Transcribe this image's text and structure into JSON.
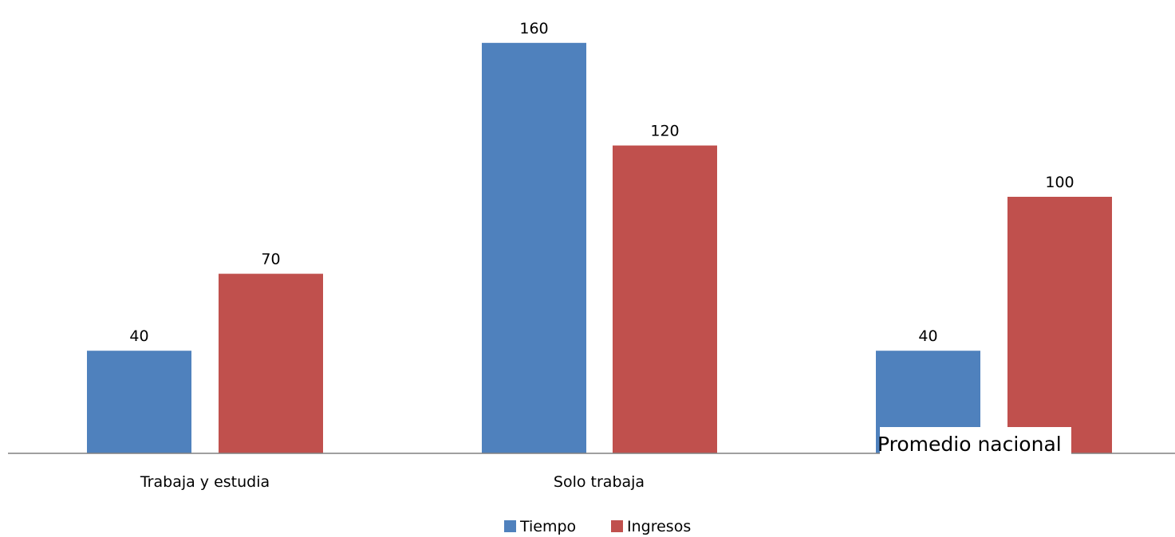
{
  "chart_data": {
    "type": "bar",
    "title": "",
    "xlabel": "",
    "ylabel": "",
    "categories": [
      "Trabaja y estudia",
      "Solo trabaja",
      ""
    ],
    "series": [
      {
        "name": "Tiempo",
        "values": [
          40,
          160,
          40
        ],
        "color": "#4f81bd"
      },
      {
        "name": "Ingresos",
        "values": [
          70,
          120,
          100
        ],
        "color": "#c0504d"
      }
    ],
    "ylim": [
      0,
      175
    ],
    "grid": false,
    "legend_position": "bottom",
    "annotations": [
      "Promedio nacional"
    ],
    "axis_color": "#808080"
  }
}
